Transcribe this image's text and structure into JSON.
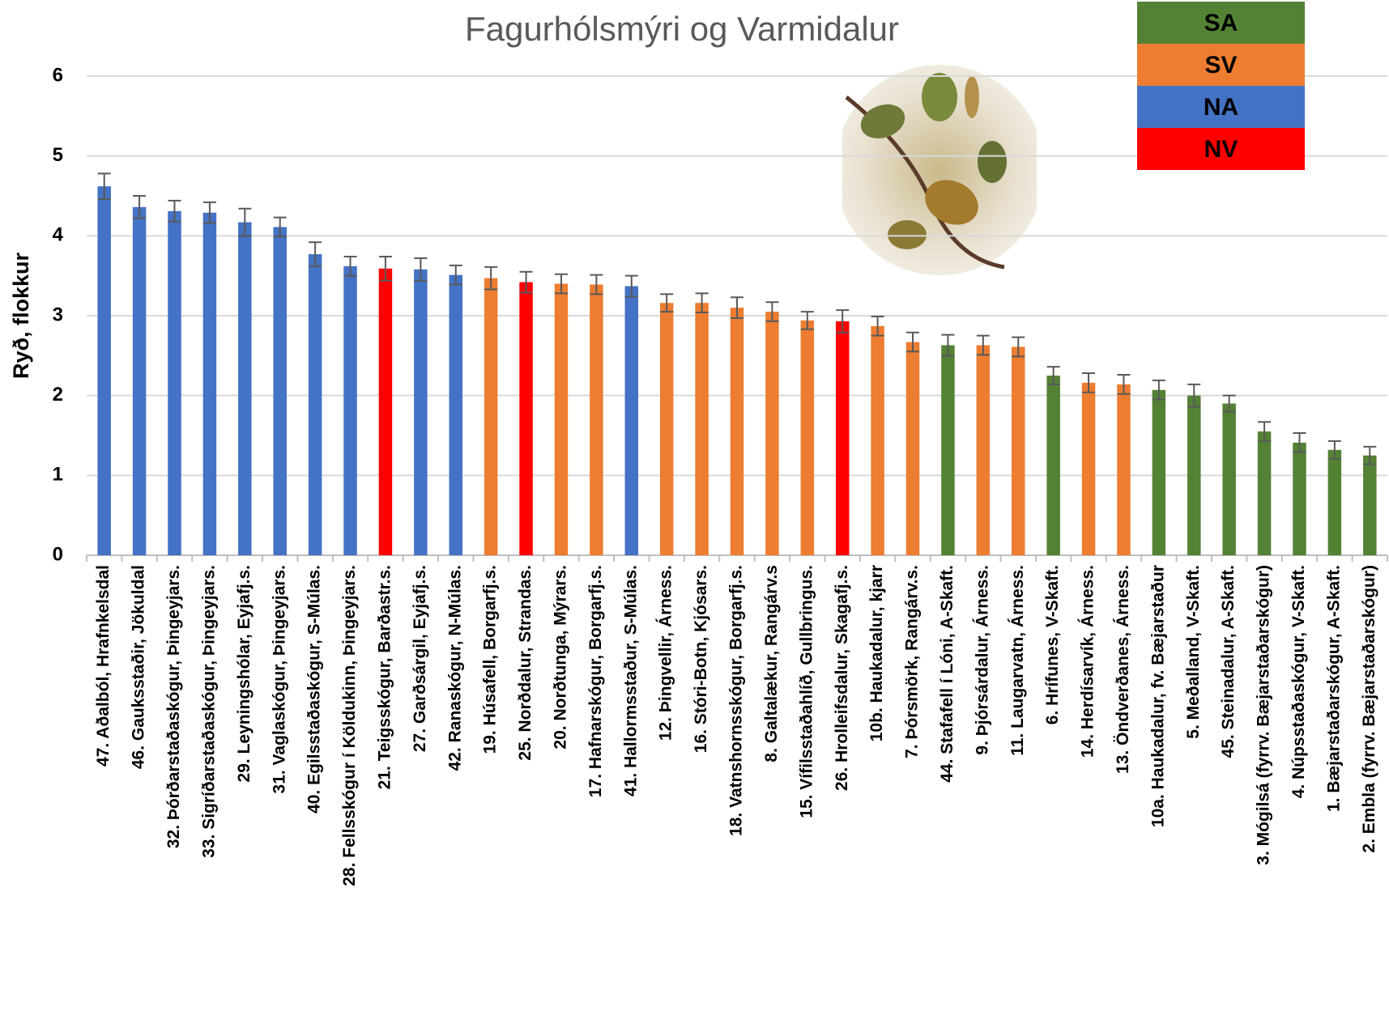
{
  "chart_data": {
    "type": "bar",
    "title": "Fagurhólsmýri og Varmidalur",
    "y_label": "Ryð, flokkur",
    "categories": [
      "47. Aðalból, Hrafnkelsdal",
      "46. Gauksstaðir, Jökuldal",
      "32. Þórðarstaðaskógur, Þingeyjars.",
      "33. Sigríðarstaðaskógur, Þingeyjars.",
      "29. Leyningshólar, Eyjafj.s.",
      "31. Vaglaskógur, Þingeyjars.",
      "40. Egilsstaðaskógur, S-Múlas.",
      "28. Fellsskógur í Köldukinn, Þingeyjars.",
      "21. Teigsskógur, Barðastr.s.",
      "27. Garðsárgil, Eyjafj.s.",
      "42. Ranaskógur, N-Múlas.",
      "19. Húsafell, Borgarfj.s.",
      "25. Norðdalur, Strandas.",
      "20. Norðtunga, Mýrars.",
      "17. Hafnarskógur, Borgarfj.s.",
      "41. Hallormsstaður, S-Múlas.",
      "12. Þingvellir, Árness.",
      "16. Stóri-Botn, Kjósars.",
      "18. Vatnshornsskógur, Borgarfj.s.",
      "8. Galtalækur, Rangárv.s",
      "15. Vífilsstaðahlíð, Gullbringus.",
      "26. Hrolleifsdalur, Skagafj.s.",
      "10b. Haukadalur, kjarr",
      "7. Þórsmörk, Rangárv.s.",
      "44. Stafafell í Lóni, A-Skaft.",
      "9. Þjórsárdalur, Árness.",
      "11. Laugarvatn, Árness.",
      "6. Hrífunes, V-Skaft.",
      "14. Herdísarvík, Árness.",
      "13. Öndverðanes, Árness.",
      "10a. Haukadalur, fv. Bæjarstaður",
      "5. Meðalland, V-Skaft.",
      "45. Steinadalur, A-Skaft.",
      "3. Mógilsá (fyrrv. Bæjarstaðarskógur)",
      "4. Núpsstaðaskógur, V-Skaft.",
      "1. Bæjarstaðarskógur, A-Skaft.",
      "2. Embla (fyrrv. Bæjarstaðarskógur)"
    ],
    "values": [
      4.62,
      4.36,
      4.31,
      4.29,
      4.17,
      4.11,
      3.77,
      3.62,
      3.59,
      3.58,
      3.51,
      3.47,
      3.42,
      3.4,
      3.39,
      3.37,
      3.16,
      3.16,
      3.1,
      3.05,
      2.94,
      2.93,
      2.87,
      2.67,
      2.63,
      2.63,
      2.61,
      2.25,
      2.16,
      2.14,
      2.07,
      2.0,
      1.9,
      1.55,
      1.41,
      1.32,
      1.25
    ],
    "errors": [
      0.16,
      0.14,
      0.13,
      0.13,
      0.17,
      0.12,
      0.15,
      0.12,
      0.15,
      0.14,
      0.12,
      0.14,
      0.13,
      0.12,
      0.12,
      0.13,
      0.11,
      0.12,
      0.13,
      0.12,
      0.11,
      0.14,
      0.12,
      0.12,
      0.13,
      0.12,
      0.12,
      0.11,
      0.12,
      0.12,
      0.12,
      0.14,
      0.1,
      0.12,
      0.12,
      0.11,
      0.11
    ],
    "colors": [
      "#4472c4",
      "#4472c4",
      "#4472c4",
      "#4472c4",
      "#4472c4",
      "#4472c4",
      "#4472c4",
      "#4472c4",
      "#ff0000",
      "#4472c4",
      "#4472c4",
      "#ed7d31",
      "#ff0000",
      "#ed7d31",
      "#ed7d31",
      "#4472c4",
      "#ed7d31",
      "#ed7d31",
      "#ed7d31",
      "#ed7d31",
      "#ed7d31",
      "#ff0000",
      "#ed7d31",
      "#ed7d31",
      "#548235",
      "#ed7d31",
      "#ed7d31",
      "#548235",
      "#ed7d31",
      "#ed7d31",
      "#548235",
      "#548235",
      "#548235",
      "#548235",
      "#548235",
      "#548235",
      "#548235"
    ],
    "legend": [
      {
        "name": "SA",
        "color": "#548235"
      },
      {
        "name": "SV",
        "color": "#ed7d31"
      },
      {
        "name": "NA",
        "color": "#4472c4"
      },
      {
        "name": "NV",
        "color": "#ff0000"
      }
    ],
    "ylim": [
      0,
      6
    ],
    "yticks": [
      0,
      1,
      2,
      3,
      4,
      5,
      6
    ],
    "grid": true
  }
}
